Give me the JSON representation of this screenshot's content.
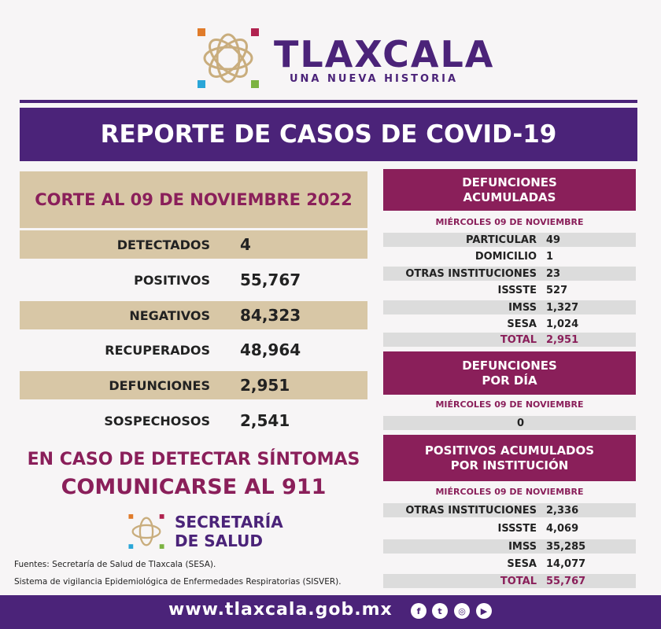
{
  "header": {
    "title": "TLAXCALA",
    "subtitle": "UNA NUEVA HISTORIA"
  },
  "banner": "REPORTE DE CASOS DE COVID-19",
  "corte": "CORTE AL 09 DE NOVIEMBRE 2022",
  "summary": [
    {
      "label": "DETECTADOS",
      "value": "4"
    },
    {
      "label": "POSITIVOS",
      "value": "55,767"
    },
    {
      "label": "NEGATIVOS",
      "value": "84,323"
    },
    {
      "label": "RECUPERADOS",
      "value": "48,964"
    },
    {
      "label": "DEFUNCIONES",
      "value": "2,951"
    },
    {
      "label": "SOSPECHOSOS",
      "value": "2,541"
    }
  ],
  "warning": {
    "line1": "EN CASO DE DETECTAR SÍNTOMAS",
    "line2": "COMUNICARSE AL 911"
  },
  "secretaria": {
    "line1": "SECRETARÍA",
    "line2": "DE SALUD"
  },
  "sources": [
    "Fuentes:  Secretaría de Salud de Tlaxcala (SESA).",
    "Sistema de vigilancia Epidemiológica de Enfermedades Respiratorias (SISVER)."
  ],
  "def_acum": {
    "title1": "DEFUNCIONES",
    "title2": "ACUMULADAS",
    "date": "MIÉRCOLES 09 DE NOVIEMBRE",
    "rows": [
      {
        "label": "PARTICULAR",
        "value": "49"
      },
      {
        "label": "DOMICILIO",
        "value": "1"
      },
      {
        "label": "OTRAS INSTITUCIONES",
        "value": "23"
      },
      {
        "label": "ISSSTE",
        "value": "527"
      },
      {
        "label": "IMSS",
        "value": "1,327"
      },
      {
        "label": "SESA",
        "value": "1,024"
      },
      {
        "label": "TOTAL",
        "value": "2,951"
      }
    ]
  },
  "def_dia": {
    "title1": "DEFUNCIONES",
    "title2": "POR DÍA",
    "date": "MIÉRCOLES 09 DE NOVIEMBRE",
    "value": "0"
  },
  "pos_acum": {
    "title1": "POSITIVOS ACUMULADOS",
    "title2": "POR INSTITUCIÓN",
    "date": "MIÉRCOLES 09 DE NOVIEMBRE",
    "rows": [
      {
        "label": "OTRAS INSTITUCIONES",
        "value": "2,336"
      },
      {
        "label": "ISSSTE",
        "value": "4,069"
      },
      {
        "label": "IMSS",
        "value": "35,285"
      },
      {
        "label": "SESA",
        "value": "14,077"
      },
      {
        "label": "TOTAL",
        "value": "55,767"
      }
    ]
  },
  "footer": {
    "url": "www.tlaxcala.gob.mx",
    "social": [
      "facebook-icon",
      "twitter-icon",
      "instagram-icon",
      "youtube-icon"
    ]
  },
  "colors": {
    "purple": "#4b2379",
    "maroon": "#8a1f5a",
    "tan": "#d8c7a6",
    "gray": "#dcdcdc"
  }
}
